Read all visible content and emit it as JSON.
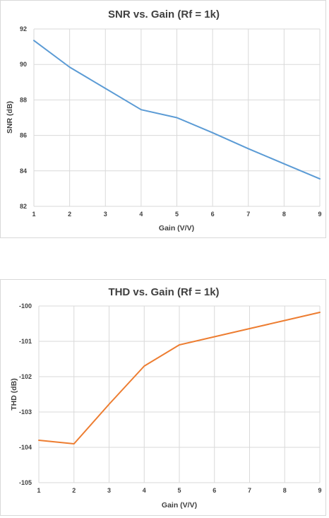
{
  "chart_data": [
    {
      "type": "line",
      "title": "SNR vs. Gain (Rf = 1k)",
      "xlabel": "Gain (V/V)",
      "ylabel": "SNR (dB)",
      "x": [
        1,
        2,
        3,
        4,
        5,
        6,
        7,
        8,
        9
      ],
      "series": [
        {
          "color": "#5b9bd5",
          "values": [
            91.35,
            89.85,
            88.65,
            87.45,
            87.0,
            86.15,
            85.25,
            84.4,
            83.55
          ]
        }
      ],
      "xlim": [
        1,
        9
      ],
      "ylim": [
        82,
        92
      ],
      "xticks": [
        1,
        2,
        3,
        4,
        5,
        6,
        7,
        8,
        9
      ],
      "yticks": [
        82,
        84,
        86,
        88,
        90,
        92
      ],
      "grid": true,
      "legend": "none"
    },
    {
      "type": "line",
      "title": "THD vs. Gain (Rf = 1k)",
      "xlabel": "Gain (V/V)",
      "ylabel": "THD (dB)",
      "x": [
        1,
        2,
        3,
        4,
        5,
        6,
        7,
        8,
        9
      ],
      "series": [
        {
          "color": "#ed7d31",
          "values": [
            -103.8,
            -103.9,
            -102.78,
            -101.7,
            -101.1,
            -100.87,
            -100.64,
            -100.41,
            -100.18
          ]
        }
      ],
      "xlim": [
        1,
        9
      ],
      "ylim": [
        -105,
        -100
      ],
      "xticks": [
        1,
        2,
        3,
        4,
        5,
        6,
        7,
        8,
        9
      ],
      "yticks": [
        -105,
        -104,
        -103,
        -102,
        -101,
        -100
      ],
      "grid": true,
      "legend": "none"
    }
  ]
}
